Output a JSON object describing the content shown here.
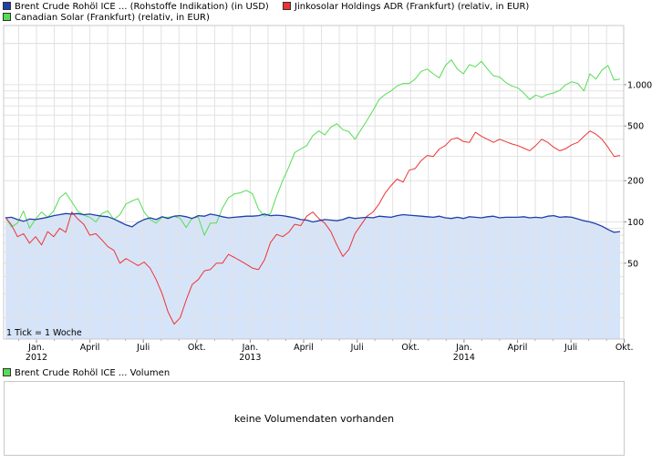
{
  "legend": {
    "items": [
      {
        "label": "Brent Crude Rohöl ICE ... (Rohstoffe Indikation) (in USD)",
        "color": "#1f3fa8"
      },
      {
        "label": "Jinkosolar Holdings ADR (Frankfurt) (relativ, in EUR)",
        "color": "#ee3333"
      },
      {
        "label": "Canadian Solar (Frankfurt) (relativ, in EUR)",
        "color": "#55dd55"
      }
    ]
  },
  "volume": {
    "legend_label": "Brent Crude Rohöl ICE ... Volumen",
    "legend_color": "#55dd55",
    "message": "keine Volumendaten vorhanden"
  },
  "chart_data": {
    "type": "line",
    "y_scale": "log",
    "ylim": [
      14,
      2700
    ],
    "y_ticks": [
      {
        "value": 50,
        "label": "50"
      },
      {
        "value": 100,
        "label": "100"
      },
      {
        "value": 200,
        "label": "200"
      },
      {
        "value": 500,
        "label": "500"
      },
      {
        "value": 1000,
        "label": "1.000"
      }
    ],
    "x_ticks": [
      {
        "label": "Jan.",
        "year": "2012"
      },
      {
        "label": "April",
        "year": ""
      },
      {
        "label": "Juli",
        "year": ""
      },
      {
        "label": "Okt.",
        "year": ""
      },
      {
        "label": "Jan.",
        "year": "2013"
      },
      {
        "label": "April",
        "year": ""
      },
      {
        "label": "Juli",
        "year": ""
      },
      {
        "label": "Okt.",
        "year": ""
      },
      {
        "label": "Jan.",
        "year": "2014"
      },
      {
        "label": "April",
        "year": ""
      },
      {
        "label": "Juli",
        "year": ""
      },
      {
        "label": "Okt.",
        "year": ""
      }
    ],
    "annotation": "1 Tick = 1 Woche",
    "grid": true,
    "series": [
      {
        "name": "Brent Crude Rohöl ICE ... (Rohstoffe Indikation) (in USD)",
        "color": "#1f3fa8",
        "fill": "#d6e4fa",
        "values": [
          107,
          108,
          104,
          101,
          105,
          104,
          106,
          108,
          111,
          113,
          115,
          114,
          115,
          113,
          114,
          112,
          110,
          109,
          105,
          100,
          95,
          92,
          99,
          104,
          107,
          104,
          109,
          106,
          110,
          111,
          109,
          106,
          111,
          110,
          114,
          112,
          109,
          107,
          108,
          109,
          110,
          110,
          111,
          114,
          111,
          112,
          111,
          109,
          107,
          104,
          103,
          100,
          102,
          104,
          103,
          102,
          104,
          108,
          106,
          107,
          108,
          107,
          110,
          109,
          108,
          111,
          113,
          112,
          111,
          110,
          109,
          108,
          110,
          107,
          106,
          108,
          106,
          109,
          108,
          107,
          109,
          110,
          107,
          108,
          108,
          108,
          109,
          107,
          108,
          107,
          110,
          111,
          108,
          109,
          108,
          105,
          102,
          100,
          97,
          93,
          88,
          84,
          85
        ]
      },
      {
        "name": "Jinkosolar Holdings ADR (Frankfurt) (relativ, in EUR)",
        "color": "#ee3333",
        "values": [
          108,
          95,
          78,
          82,
          70,
          78,
          68,
          85,
          78,
          90,
          84,
          118,
          105,
          96,
          80,
          82,
          74,
          66,
          62,
          50,
          54,
          51,
          48,
          51,
          46,
          38,
          30,
          22,
          18,
          20,
          27,
          35,
          38,
          44,
          45,
          50,
          50,
          58,
          55,
          52,
          49,
          46,
          45,
          53,
          71,
          81,
          78,
          84,
          96,
          94,
          110,
          118,
          106,
          98,
          85,
          68,
          56,
          63,
          82,
          95,
          110,
          118,
          135,
          162,
          184,
          205,
          195,
          238,
          245,
          280,
          305,
          300,
          340,
          360,
          400,
          410,
          385,
          380,
          450,
          420,
          400,
          380,
          400,
          385,
          370,
          360,
          345,
          330,
          360,
          400,
          380,
          350,
          330,
          342,
          365,
          380,
          420,
          460,
          436,
          400,
          350,
          300,
          305
        ]
      },
      {
        "name": "Canadian Solar (Frankfurt) (relativ, in EUR)",
        "color": "#55dd55",
        "values": [
          108,
          92,
          98,
          120,
          90,
          105,
          118,
          108,
          120,
          150,
          163,
          140,
          120,
          112,
          108,
          100,
          115,
          120,
          104,
          113,
          135,
          142,
          148,
          118,
          104,
          98,
          108,
          108,
          110,
          106,
          91,
          107,
          108,
          80,
          98,
          98,
          126,
          150,
          160,
          163,
          170,
          160,
          124,
          110,
          115,
          155,
          200,
          250,
          320,
          340,
          360,
          425,
          460,
          430,
          490,
          520,
          470,
          455,
          400,
          470,
          550,
          650,
          780,
          850,
          900,
          980,
          1020,
          1020,
          1100,
          1250,
          1300,
          1200,
          1120,
          1380,
          1520,
          1300,
          1200,
          1400,
          1350,
          1480,
          1300,
          1160,
          1140,
          1040,
          980,
          950,
          870,
          780,
          840,
          810,
          850,
          870,
          910,
          1000,
          1050,
          1020,
          900,
          1200,
          1100,
          1280,
          1380,
          1080,
          1100
        ]
      }
    ]
  }
}
